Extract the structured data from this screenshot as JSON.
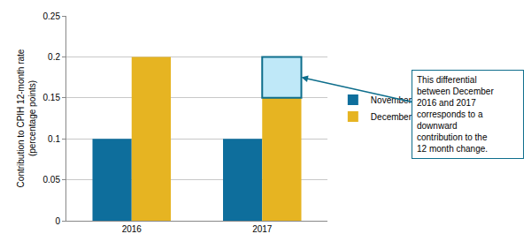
{
  "chart_data": {
    "type": "bar",
    "categories": [
      "2016",
      "2017"
    ],
    "series": [
      {
        "name": "November",
        "color": "#0e6e9c",
        "values": [
          0.1,
          0.1
        ]
      },
      {
        "name": "December",
        "color": "#e6b422",
        "values": [
          0.2,
          0.15
        ]
      }
    ],
    "y_label": "Contribution to CPIH 12-month rate (percentage points)",
    "ylim": [
      0,
      0.25
    ],
    "yticks": [
      0,
      0.05,
      0.1,
      0.15,
      0.2,
      0.25
    ],
    "grid": true,
    "legend": "right",
    "annotations": [
      {
        "text": "This differential between December 2016 and 2017 corresponds to a downward contribution to the 12 month change.",
        "color": "#bfe8f8"
      }
    ]
  }
}
